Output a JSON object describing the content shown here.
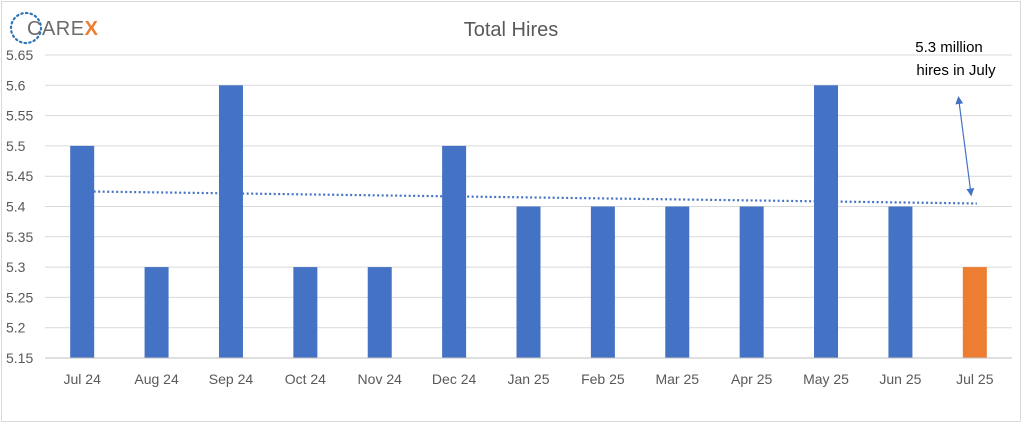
{
  "logo": {
    "text_main": "CARE",
    "text_accent": "X",
    "color_main": "#6b6b6b",
    "color_accent": "#ed7d31",
    "color_dots": "#2e75b6"
  },
  "chart_data": {
    "type": "bar",
    "title": "Total Hires",
    "xlabel": "",
    "ylabel": "",
    "categories": [
      "Jul 24",
      "Aug 24",
      "Sep 24",
      "Oct 24",
      "Nov 24",
      "Dec 24",
      "Jan 25",
      "Feb 25",
      "Mar 25",
      "Apr 25",
      "May 25",
      "Jun 25",
      "Jul 25"
    ],
    "values": [
      5.5,
      5.3,
      5.6,
      5.3,
      5.3,
      5.5,
      5.4,
      5.4,
      5.4,
      5.4,
      5.6,
      5.4,
      5.3
    ],
    "ylim": [
      5.15,
      5.65
    ],
    "yticks": [
      "5.15",
      "5.2",
      "5.25",
      "5.3",
      "5.35",
      "5.4",
      "5.45",
      "5.5",
      "5.55",
      "5.6",
      "5.65"
    ],
    "grid": true,
    "bar_color": "#4472c4",
    "highlight_color": "#ed7d31",
    "highlight_index": 12,
    "trendline": {
      "style": "dotted",
      "color": "#4472c4",
      "start": 5.425,
      "end": 5.405
    },
    "annotation": {
      "lines": [
        "5.3 million",
        "hires in July"
      ],
      "target_value": 5.405,
      "target_category": "Jul 25"
    }
  }
}
